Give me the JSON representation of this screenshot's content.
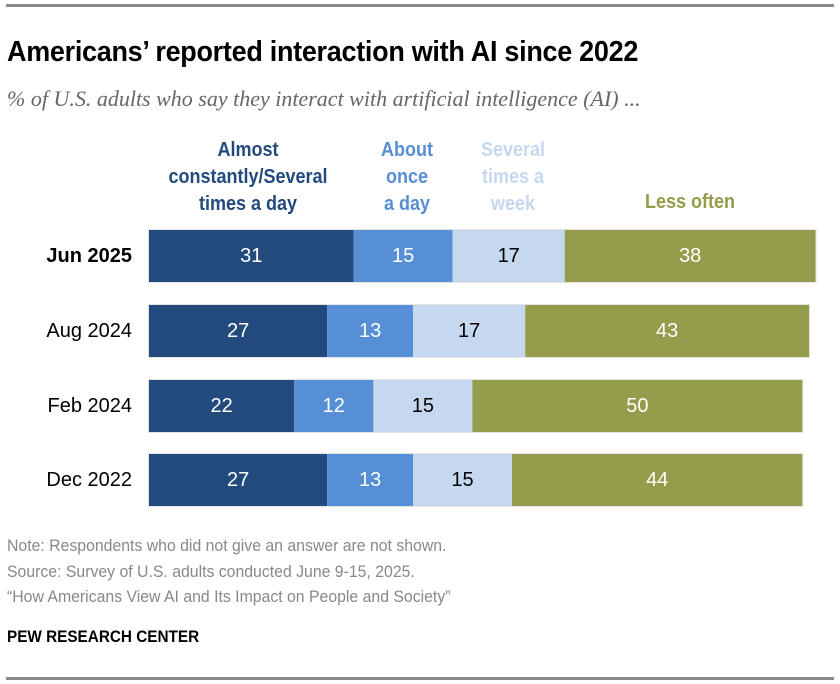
{
  "header": {
    "title": "Americans’ reported interaction with AI since 2022",
    "subtitle": "% of U.S. adults who say they interact with artificial intelligence (AI) ..."
  },
  "footer": {
    "note": "Note: Respondents who did not give an answer are not shown.",
    "source": "Source: Survey of U.S. adults conducted June 9-15, 2025.",
    "report": "“How Americans View AI and Its Impact on People and Society”",
    "brand": "PEW RESEARCH CENTER"
  },
  "chart_data": {
    "type": "bar",
    "orientation": "horizontal",
    "stacked": true,
    "title": "Americans’ reported interaction with AI since 2022",
    "subtitle": "% of U.S. adults who say they interact with artificial intelligence (AI) ...",
    "xlabel": "",
    "ylabel": "",
    "xlim": [
      0,
      100
    ],
    "grid": false,
    "legend_position": "top",
    "categories": [
      "Jun 2025",
      "Aug 2024",
      "Feb 2024",
      "Dec 2022"
    ],
    "highlighted_category": "Jun 2025",
    "series": [
      {
        "name": "Almost constantly/Several times a day",
        "legend_text": "Almost\nconstantly/Several\ntimes a day",
        "color": "#224a7c",
        "label_color": "#ffffff",
        "values": [
          31,
          27,
          22,
          27
        ]
      },
      {
        "name": "About once a day",
        "legend_text": "About\nonce\na day",
        "color": "#568fd6",
        "label_color": "#ffffff",
        "values": [
          15,
          13,
          12,
          13
        ]
      },
      {
        "name": "Several times a week",
        "legend_text": "Several\ntimes a\nweek",
        "color": "#c6d8f0",
        "label_color": "#000000",
        "values": [
          17,
          17,
          15,
          15
        ]
      },
      {
        "name": "Less often",
        "legend_text": "Less often",
        "color": "#959c4b",
        "label_color": "#ffffff",
        "values": [
          38,
          43,
          50,
          44
        ]
      }
    ]
  }
}
